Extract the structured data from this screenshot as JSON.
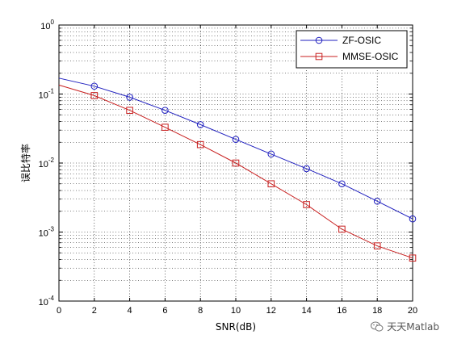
{
  "chart_data": {
    "type": "line",
    "title": "",
    "xlabel": "SNR(dB)",
    "ylabel": "误比特率",
    "x": [
      2,
      4,
      6,
      8,
      10,
      12,
      14,
      16,
      18,
      20
    ],
    "xlim": [
      0,
      20
    ],
    "xticks": [
      0,
      2,
      4,
      6,
      8,
      10,
      12,
      14,
      16,
      18,
      20
    ],
    "ylim": [
      0.0001,
      1
    ],
    "yscale": "log",
    "ytick_exponents": [
      0,
      -1,
      -2,
      -3,
      -4
    ],
    "grid": true,
    "legend_position": "top-right",
    "series": [
      {
        "name": "ZF-OSIC",
        "color": "#1f1fbf",
        "marker": "circle",
        "line_start": 0.17,
        "values": [
          0.13,
          0.09,
          0.058,
          0.036,
          0.022,
          0.0135,
          0.0083,
          0.005,
          0.0028,
          0.00155
        ]
      },
      {
        "name": "MMSE-OSIC",
        "color": "#c81f1f",
        "marker": "square",
        "line_start": 0.135,
        "values": [
          0.095,
          0.058,
          0.033,
          0.0185,
          0.01,
          0.005,
          0.0025,
          0.0011,
          0.00063,
          0.00042
        ]
      }
    ]
  },
  "watermark": {
    "icon": "wechat-icon",
    "text": "天天Matlab"
  }
}
